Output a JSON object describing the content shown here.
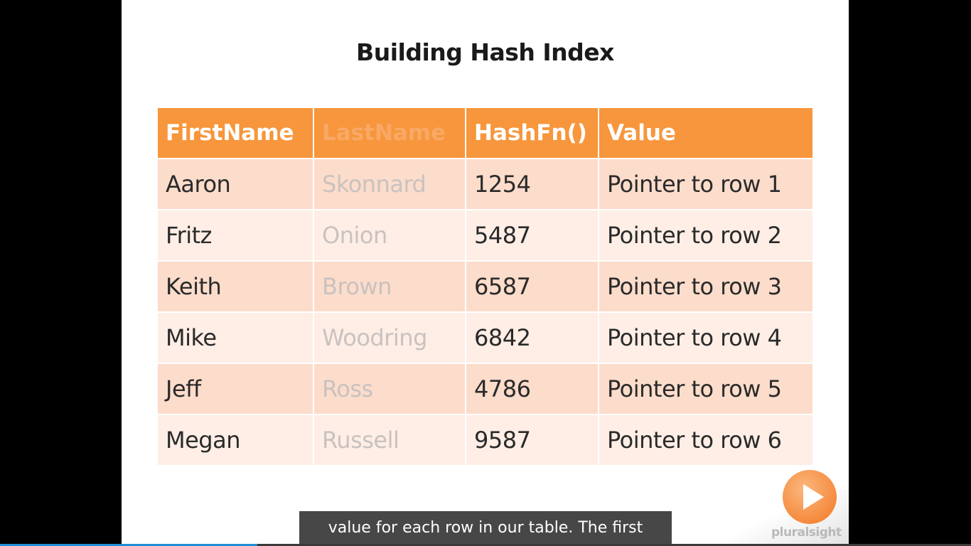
{
  "slide": {
    "title": "Building Hash Index",
    "table": {
      "headers": [
        "FirstName",
        "LastName",
        "HashFn()",
        "Value"
      ],
      "rows": [
        [
          "Aaron",
          "Skonnard",
          "1254",
          "Pointer to row 1"
        ],
        [
          "Fritz",
          "Onion",
          "5487",
          "Pointer to row 2"
        ],
        [
          "Keith",
          "Brown",
          "6587",
          "Pointer to row 3"
        ],
        [
          "Mike",
          "Woodring",
          "6842",
          "Pointer to row 4"
        ],
        [
          "Jeff",
          "Ross",
          "4786",
          "Pointer to row 5"
        ],
        [
          "Megan",
          "Russell",
          "9587",
          "Pointer to row 6"
        ]
      ]
    },
    "brand": "pluralsight"
  },
  "player": {
    "caption": "value for each row in our table. The first",
    "progress_fraction": 0.265
  },
  "colors": {
    "header_bg": "#f7963c",
    "row_odd": "#fcdccb",
    "row_even": "#feeee6",
    "progress": "#1e8fd6"
  },
  "icons": {
    "logo": "play-icon"
  }
}
